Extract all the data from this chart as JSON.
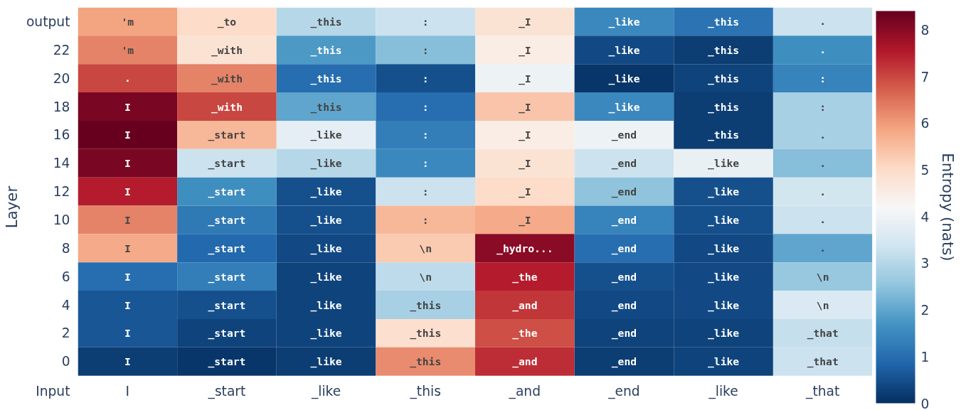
{
  "chart_data": {
    "type": "heatmap",
    "xlabel": "Input",
    "ylabel": "Layer",
    "clabel": "Entropy (nats)",
    "categories": [
      "I",
      "_start",
      "_like",
      "_this",
      "_and",
      "_end",
      "_like",
      "_that"
    ],
    "y_categories": [
      "output",
      "22",
      "20",
      "18",
      "16",
      "14",
      "12",
      "10",
      "8",
      "6",
      "4",
      "2",
      "0"
    ],
    "cells": [
      [
        5.9,
        5.0,
        3.0,
        3.3,
        4.8,
        1.5,
        1.1,
        3.3
      ],
      [
        6.3,
        4.8,
        1.8,
        2.4,
        4.5,
        0.4,
        0.2,
        1.6
      ],
      [
        7.0,
        6.3,
        1.0,
        0.5,
        4.0,
        0.1,
        0.3,
        1.4
      ],
      [
        8.2,
        7.0,
        2.0,
        1.0,
        5.4,
        1.5,
        0.2,
        2.8
      ],
      [
        8.4,
        5.6,
        3.8,
        1.3,
        4.5,
        4.0,
        0.2,
        2.8
      ],
      [
        8.2,
        3.3,
        3.0,
        1.5,
        4.8,
        3.3,
        3.9,
        2.4
      ],
      [
        7.5,
        1.6,
        0.5,
        3.3,
        5.0,
        2.5,
        0.5,
        3.4
      ],
      [
        6.3,
        1.2,
        0.5,
        5.6,
        5.8,
        1.4,
        0.5,
        3.3
      ],
      [
        5.8,
        0.9,
        0.4,
        5.3,
        8.0,
        1.0,
        0.4,
        2.0
      ],
      [
        1.0,
        1.3,
        0.3,
        3.1,
        7.5,
        0.5,
        0.4,
        2.6
      ],
      [
        0.6,
        0.5,
        0.3,
        2.8,
        7.2,
        0.4,
        0.4,
        3.6
      ],
      [
        0.6,
        0.3,
        0.3,
        4.9,
        6.9,
        0.3,
        0.3,
        3.2
      ],
      [
        0.2,
        0.1,
        0.2,
        6.2,
        7.3,
        0.2,
        0.3,
        3.3
      ]
    ],
    "cell_labels": [
      [
        "'m",
        "_to",
        "_this",
        ":",
        "_I",
        "_like",
        "_this",
        "."
      ],
      [
        "'m",
        "_with",
        "_this",
        ":",
        "_I",
        "_like",
        "_this",
        "."
      ],
      [
        ".",
        "_with",
        "_this",
        ":",
        "_I",
        "_like",
        "_this",
        ":"
      ],
      [
        "I",
        "_with",
        "_this",
        ":",
        "_I",
        "_like",
        "_this",
        ":"
      ],
      [
        "I",
        "_start",
        "_like",
        ":",
        "_I",
        "_end",
        "_this",
        "."
      ],
      [
        "I",
        "_start",
        "_like",
        ":",
        "_I",
        "_end",
        "_like",
        "."
      ],
      [
        "I",
        "_start",
        "_like",
        ":",
        "_I",
        "_end",
        "_like",
        "."
      ],
      [
        "I",
        "_start",
        "_like",
        ":",
        "_I",
        "_end",
        "_like",
        "."
      ],
      [
        "I",
        "_start",
        "_like",
        "\\n",
        "_hydro...",
        "_end",
        "_like",
        "."
      ],
      [
        "I",
        "_start",
        "_like",
        "\\n",
        "_the",
        "_end",
        "_like",
        "\\n"
      ],
      [
        "I",
        "_start",
        "_like",
        "_this",
        "_and",
        "_end",
        "_like",
        "\\n"
      ],
      [
        "I",
        "_start",
        "_like",
        "_this",
        "_the",
        "_end",
        "_like",
        "_that"
      ],
      [
        "I",
        "_start",
        "_like",
        "_this",
        "_and",
        "_end",
        "_like",
        "_that"
      ]
    ],
    "clim": [
      0,
      8.4
    ],
    "cticks": [
      0,
      1,
      2,
      3,
      4,
      5,
      6,
      7,
      8
    ]
  }
}
